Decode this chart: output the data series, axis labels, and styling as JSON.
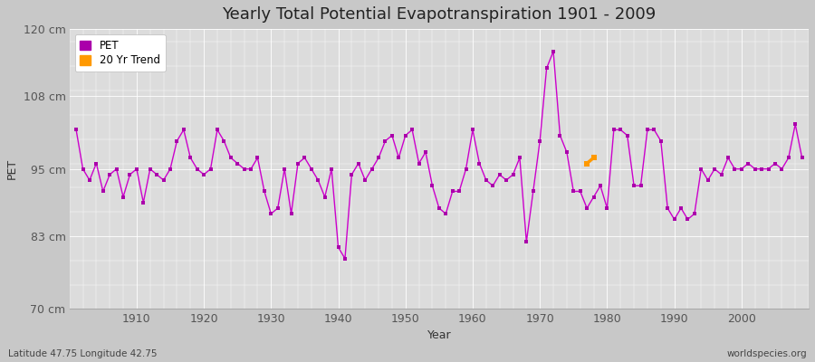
{
  "title": "Yearly Total Potential Evapotranspiration 1901 - 2009",
  "xlabel": "Year",
  "ylabel": "PET",
  "subtitle_left": "Latitude 47.75 Longitude 42.75",
  "subtitle_right": "worldspecies.org",
  "ylim": [
    70,
    120
  ],
  "xlim": [
    1900,
    2010
  ],
  "yticks": [
    70,
    83,
    95,
    108,
    120
  ],
  "ytick_labels": [
    "70 cm",
    "83 cm",
    "95 cm",
    "108 cm",
    "120 cm"
  ],
  "outer_bg": "#c8c8c8",
  "plot_bg_color": "#dcdcdc",
  "grid_color": "#ffffff",
  "line_color": "#cc00cc",
  "trend_color": "#ff9900",
  "pet_color": "#aa00aa",
  "years": [
    1901,
    1902,
    1903,
    1904,
    1905,
    1906,
    1907,
    1908,
    1909,
    1910,
    1911,
    1912,
    1913,
    1914,
    1915,
    1916,
    1917,
    1918,
    1919,
    1920,
    1921,
    1922,
    1923,
    1924,
    1925,
    1926,
    1927,
    1928,
    1929,
    1930,
    1931,
    1932,
    1933,
    1934,
    1935,
    1936,
    1937,
    1938,
    1939,
    1940,
    1941,
    1942,
    1943,
    1944,
    1945,
    1946,
    1947,
    1948,
    1949,
    1950,
    1951,
    1952,
    1953,
    1954,
    1955,
    1956,
    1957,
    1958,
    1959,
    1960,
    1961,
    1962,
    1963,
    1964,
    1965,
    1966,
    1967,
    1968,
    1969,
    1970,
    1971,
    1972,
    1973,
    1974,
    1975,
    1976,
    1977,
    1978,
    1979,
    1980,
    1981,
    1982,
    1983,
    1984,
    1985,
    1986,
    1987,
    1988,
    1989,
    1990,
    1991,
    1992,
    1993,
    1994,
    1995,
    1996,
    1997,
    1998,
    1999,
    2000,
    2001,
    2002,
    2003,
    2004,
    2005,
    2006,
    2007,
    2008,
    2009
  ],
  "pet_values": [
    102,
    95,
    93,
    96,
    91,
    94,
    95,
    90,
    94,
    95,
    89,
    95,
    94,
    93,
    95,
    100,
    102,
    97,
    95,
    94,
    95,
    102,
    100,
    97,
    96,
    95,
    95,
    97,
    91,
    87,
    88,
    95,
    87,
    96,
    97,
    95,
    93,
    90,
    95,
    81,
    79,
    94,
    96,
    93,
    95,
    97,
    100,
    101,
    97,
    101,
    102,
    96,
    98,
    92,
    88,
    87,
    91,
    91,
    95,
    102,
    96,
    93,
    92,
    94,
    93,
    94,
    97,
    82,
    91,
    100,
    113,
    116,
    101,
    98,
    91,
    91,
    88,
    90,
    92,
    88,
    102,
    102,
    101,
    92,
    92,
    102,
    102,
    100,
    88,
    86,
    88,
    86,
    87,
    95,
    93,
    95,
    94,
    97,
    95,
    95,
    96,
    95,
    95,
    95,
    96,
    95,
    97,
    103,
    97
  ],
  "trend_years": [
    1977,
    1978
  ],
  "trend_values": [
    96.0,
    97.0
  ],
  "xticks": [
    1910,
    1920,
    1930,
    1940,
    1950,
    1960,
    1970,
    1980,
    1990,
    2000
  ],
  "title_fontsize": 13,
  "axis_label_fontsize": 9,
  "tick_fontsize": 9
}
